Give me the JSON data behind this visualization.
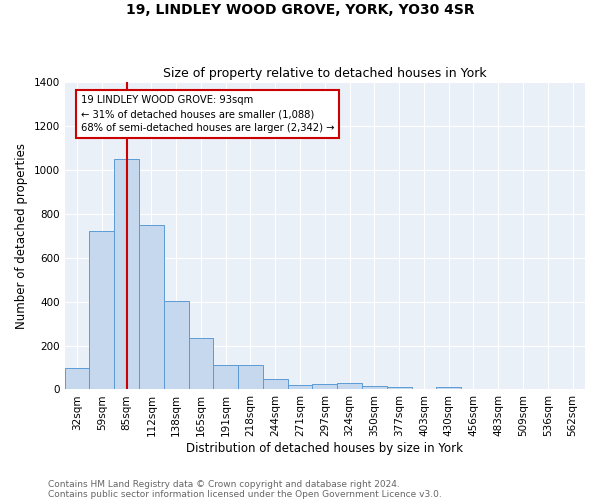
{
  "title": "19, LINDLEY WOOD GROVE, YORK, YO30 4SR",
  "subtitle": "Size of property relative to detached houses in York",
  "xlabel": "Distribution of detached houses by size in York",
  "ylabel": "Number of detached properties",
  "footnote1": "Contains HM Land Registry data © Crown copyright and database right 2024.",
  "footnote2": "Contains public sector information licensed under the Open Government Licence v3.0.",
  "bar_labels": [
    "32sqm",
    "59sqm",
    "85sqm",
    "112sqm",
    "138sqm",
    "165sqm",
    "191sqm",
    "218sqm",
    "244sqm",
    "271sqm",
    "297sqm",
    "324sqm",
    "350sqm",
    "377sqm",
    "403sqm",
    "430sqm",
    "456sqm",
    "483sqm",
    "509sqm",
    "536sqm",
    "562sqm"
  ],
  "bar_values": [
    100,
    720,
    1050,
    750,
    405,
    235,
    110,
    110,
    47,
    20,
    27,
    28,
    18,
    10,
    0,
    13,
    0,
    0,
    0,
    0,
    0
  ],
  "bar_color": "#c5d8ed",
  "bar_edge_color": "#5b9bd5",
  "red_line_x": 2,
  "red_line_color": "#cc0000",
  "annotation_text": "19 LINDLEY WOOD GROVE: 93sqm\n← 31% of detached houses are smaller (1,088)\n68% of semi-detached houses are larger (2,342) →",
  "annotation_box_color": "#ffffff",
  "annotation_box_edge": "#cc0000",
  "ylim": [
    0,
    1400
  ],
  "yticks": [
    0,
    200,
    400,
    600,
    800,
    1000,
    1200,
    1400
  ],
  "plot_bg_color": "#eaf0f8",
  "title_fontsize": 10,
  "subtitle_fontsize": 9,
  "axis_label_fontsize": 8.5,
  "tick_fontsize": 7.5,
  "footnote_fontsize": 6.5,
  "footnote_color": "#666666"
}
